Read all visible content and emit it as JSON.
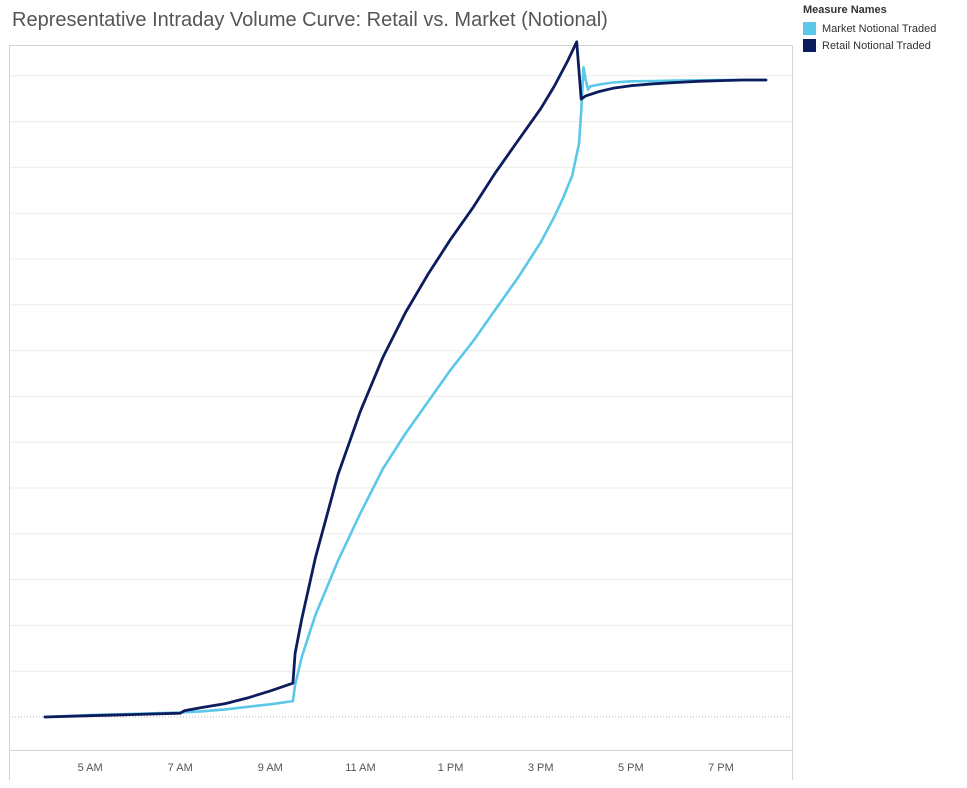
{
  "chart_data": {
    "type": "line",
    "title": "Representative Intraday Volume Curve: Retail vs. Market (Notional)",
    "xlabel": "",
    "ylabel": "",
    "x_unit": "hour of day",
    "xlim": [
      3.2,
      20.6
    ],
    "ylim": [
      -0.045,
      1.02
    ],
    "ygrid_step": 0.0719,
    "grid": true,
    "legend_position": "top-right",
    "x_ticks": [
      {
        "x": 5,
        "label": "5 AM"
      },
      {
        "x": 7,
        "label": "7 AM"
      },
      {
        "x": 9,
        "label": "9 AM"
      },
      {
        "x": 11,
        "label": "11 AM"
      },
      {
        "x": 13,
        "label": "1 PM"
      },
      {
        "x": 15,
        "label": "3 PM"
      },
      {
        "x": 17,
        "label": "5 PM"
      },
      {
        "x": 19,
        "label": "7 PM"
      }
    ],
    "series": [
      {
        "name": "Market Notional Traded",
        "color": "#5bc8ea",
        "x": [
          4.0,
          5.0,
          6.0,
          7.0,
          7.5,
          8.0,
          8.5,
          9.0,
          9.5,
          9.55,
          9.7,
          10.0,
          10.5,
          11.0,
          11.5,
          12.0,
          12.5,
          13.0,
          13.5,
          14.0,
          14.5,
          15.0,
          15.3,
          15.5,
          15.7,
          15.85,
          15.9,
          15.95,
          16.0,
          16.05,
          16.1,
          16.3,
          16.6,
          17.0,
          17.5,
          18.0,
          18.5,
          19.0,
          19.5,
          20.0
        ],
        "y": [
          0.0,
          0.003,
          0.005,
          0.007,
          0.009,
          0.012,
          0.016,
          0.02,
          0.025,
          0.05,
          0.095,
          0.16,
          0.245,
          0.32,
          0.39,
          0.445,
          0.495,
          0.545,
          0.59,
          0.64,
          0.69,
          0.745,
          0.785,
          0.815,
          0.85,
          0.9,
          0.95,
          1.02,
          1.0,
          0.985,
          0.99,
          0.993,
          0.996,
          0.998,
          0.9985,
          0.999,
          0.9995,
          0.9998,
          1.0,
          1.0
        ],
        "y_scale_note": ""
      },
      {
        "name": "Retail Notional Traded",
        "color": "#0c1d5e",
        "x": [
          4.0,
          5.0,
          6.0,
          7.0,
          7.1,
          7.5,
          8.0,
          8.5,
          9.0,
          9.5,
          9.55,
          9.7,
          10.0,
          10.5,
          11.0,
          11.5,
          12.0,
          12.5,
          13.0,
          13.5,
          14.0,
          14.5,
          15.0,
          15.3,
          15.6,
          15.8,
          15.9,
          16.0,
          16.3,
          16.6,
          17.0,
          17.5,
          18.0,
          18.5,
          19.0,
          19.5,
          20.0
        ],
        "y": [
          0.0,
          0.002,
          0.004,
          0.006,
          0.01,
          0.015,
          0.021,
          0.03,
          0.041,
          0.053,
          0.1,
          0.155,
          0.25,
          0.38,
          0.48,
          0.565,
          0.635,
          0.695,
          0.75,
          0.8,
          0.855,
          0.905,
          0.955,
          0.99,
          1.03,
          1.06,
          0.97,
          0.975,
          0.982,
          0.987,
          0.991,
          0.994,
          0.996,
          0.998,
          0.999,
          1.0,
          1.0
        ]
      }
    ]
  },
  "legend": {
    "title": "Measure Names",
    "items": [
      {
        "label": "Market Notional Traded",
        "color": "#5bc8ea"
      },
      {
        "label": "Retail Notional Traded",
        "color": "#0c1d5e"
      }
    ]
  }
}
